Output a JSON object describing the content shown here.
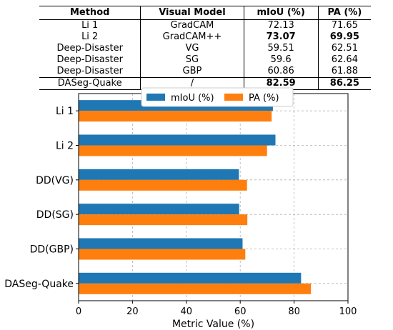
{
  "table": {
    "headers": [
      "Method",
      "Visual Model",
      "mIoU (%)",
      "PA (%)"
    ],
    "rows": [
      {
        "method": "Li 1",
        "model": "GradCAM",
        "miou": "72.13",
        "pa": "71.65",
        "bold_miou": false,
        "bold_pa": false
      },
      {
        "method": "Li 2",
        "model": "GradCAM++",
        "miou": "73.07",
        "pa": "69.95",
        "bold_miou": true,
        "bold_pa": true
      },
      {
        "method": "Deep-Disaster",
        "model": "VG",
        "miou": "59.51",
        "pa": "62.51",
        "bold_miou": false,
        "bold_pa": false
      },
      {
        "method": "Deep-Disaster",
        "model": "SG",
        "miou": "59.6",
        "pa": "62.64",
        "bold_miou": false,
        "bold_pa": false
      },
      {
        "method": "Deep-Disaster",
        "model": "GBP",
        "miou": "60.86",
        "pa": "61.88",
        "bold_miou": false,
        "bold_pa": false
      },
      {
        "method": "DASeg-Quake",
        "model": "/",
        "miou": "82.59",
        "pa": "86.25",
        "bold_miou": true,
        "bold_pa": true
      }
    ]
  },
  "chart_data": {
    "type": "bar",
    "orientation": "horizontal",
    "categories": [
      "Li 1",
      "Li 2",
      "DD(VG)",
      "DD(SG)",
      "DD(GBP)",
      "DASeg-Quake"
    ],
    "series": [
      {
        "name": "mIoU (%)",
        "color": "#1f77b4",
        "values": [
          72.13,
          73.07,
          59.51,
          59.6,
          60.86,
          82.59
        ]
      },
      {
        "name": "PA (%)",
        "color": "#ff7f0e",
        "values": [
          71.65,
          69.95,
          62.51,
          62.64,
          61.88,
          86.25
        ]
      }
    ],
    "xlabel": "Metric Value (%)",
    "xlim": [
      0,
      100
    ],
    "xticks": [
      0,
      20,
      40,
      60,
      80,
      100
    ],
    "grid": true,
    "legend_placement": "top-center"
  }
}
